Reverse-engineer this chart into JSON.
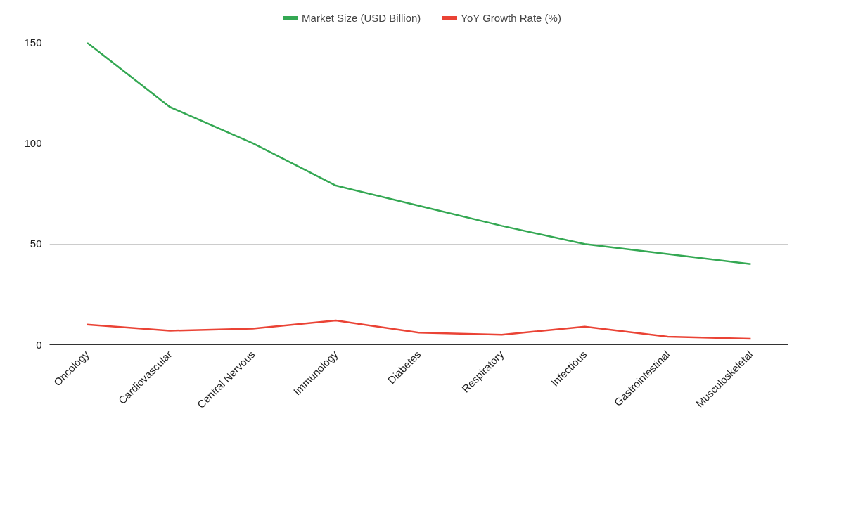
{
  "chart_data": {
    "type": "line",
    "categories": [
      "Oncology",
      "Cardiovascular",
      "Central Nervous",
      "Immunology",
      "Diabetes",
      "Respiratory",
      "Infectious",
      "Gastrointestinal",
      "Musculoskeletal"
    ],
    "series": [
      {
        "name": "Market Size (USD Billion)",
        "color": "#34a853",
        "values": [
          150,
          118,
          100,
          79,
          69,
          59,
          50,
          45,
          40
        ]
      },
      {
        "name": "YoY Growth Rate (%)",
        "color": "#ea4335",
        "values": [
          10,
          7,
          8,
          12,
          6,
          5,
          9,
          4,
          3
        ]
      }
    ],
    "ylim": [
      0,
      150
    ],
    "yticks": [
      0,
      50,
      100,
      150
    ],
    "grid": "y",
    "legend": "top",
    "marker": "none",
    "line_style": "solid"
  }
}
